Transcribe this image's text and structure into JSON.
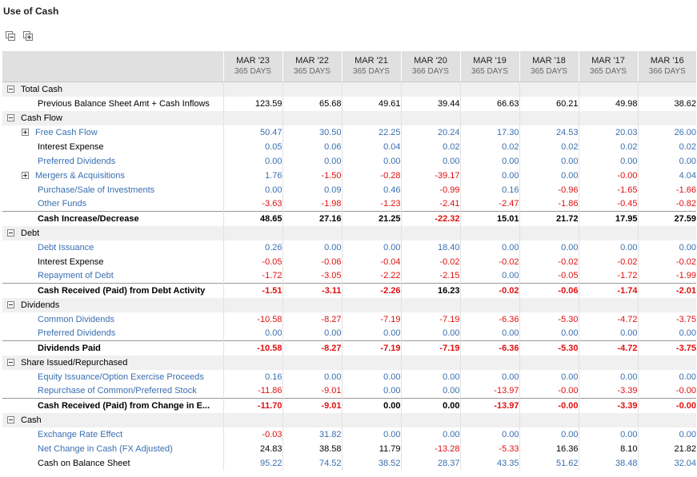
{
  "page": {
    "title": "Use of Cash"
  },
  "toolbar": {
    "icons": [
      "collapse-all-icon",
      "expand-all-icon"
    ]
  },
  "columns": [
    {
      "period": "MAR '23",
      "days": "365 DAYS"
    },
    {
      "period": "MAR '22",
      "days": "365 DAYS"
    },
    {
      "period": "MAR '21",
      "days": "365 DAYS"
    },
    {
      "period": "MAR '20",
      "days": "366 DAYS"
    },
    {
      "period": "MAR '19",
      "days": "365 DAYS"
    },
    {
      "period": "MAR '18",
      "days": "365 DAYS"
    },
    {
      "period": "MAR '17",
      "days": "365 DAYS"
    },
    {
      "period": "MAR '16",
      "days": "366 DAYS"
    }
  ],
  "rows": [
    {
      "type": "section",
      "label": "Total Cash"
    },
    {
      "type": "row",
      "label": "Previous Balance Sheet Amt + Cash Inflows",
      "link": false,
      "color": "black",
      "values": [
        "123.59",
        "65.68",
        "49.61",
        "39.44",
        "66.63",
        "60.21",
        "49.98",
        "38.62"
      ]
    },
    {
      "type": "section",
      "label": "Cash Flow"
    },
    {
      "type": "row",
      "label": "Free Cash Flow",
      "link": true,
      "expand": true,
      "color": "blue",
      "values": [
        "50.47",
        "30.50",
        "22.25",
        "20.24",
        "17.30",
        "24.53",
        "20.03",
        "26.00"
      ]
    },
    {
      "type": "row",
      "label": "Interest Expense",
      "link": false,
      "color": "blue",
      "values": [
        "0.05",
        "0.06",
        "0.04",
        "0.02",
        "0.02",
        "0.02",
        "0.02",
        "0.02"
      ]
    },
    {
      "type": "row",
      "label": "Preferred Dividends",
      "link": true,
      "color": "blue",
      "values": [
        "0.00",
        "0.00",
        "0.00",
        "0.00",
        "0.00",
        "0.00",
        "0.00",
        "0.00"
      ]
    },
    {
      "type": "row",
      "label": "Mergers & Acquisitions",
      "link": true,
      "expand": true,
      "color": "blue",
      "values": [
        "1.76",
        "-1.50",
        "-0.28",
        "-39.17",
        "0.00",
        "0.00",
        "-0.00",
        "4.04"
      ]
    },
    {
      "type": "row",
      "label": "Purchase/Sale of Investments",
      "link": true,
      "color": "blue",
      "values": [
        "0.00",
        "0.09",
        "0.46",
        "-0.99",
        "0.16",
        "-0.96",
        "-1.65",
        "-1.66"
      ]
    },
    {
      "type": "row",
      "label": "Other Funds",
      "link": true,
      "color": "blue",
      "values": [
        "-3.63",
        "-1.98",
        "-1.23",
        "-2.41",
        "-2.47",
        "-1.86",
        "-0.45",
        "-0.82"
      ]
    },
    {
      "type": "total",
      "label": "Cash Increase/Decrease",
      "values": [
        "48.65",
        "27.16",
        "21.25",
        "-22.32",
        "15.01",
        "21.72",
        "17.95",
        "27.59"
      ]
    },
    {
      "type": "section",
      "label": "Debt"
    },
    {
      "type": "row",
      "label": "Debt Issuance",
      "link": true,
      "color": "blue",
      "values": [
        "0.26",
        "0.00",
        "0.00",
        "18.40",
        "0.00",
        "0.00",
        "0.00",
        "0.00"
      ]
    },
    {
      "type": "row",
      "label": "Interest Expense",
      "link": false,
      "color": "blue",
      "values": [
        "-0.05",
        "-0.06",
        "-0.04",
        "-0.02",
        "-0.02",
        "-0.02",
        "-0.02",
        "-0.02"
      ]
    },
    {
      "type": "row",
      "label": "Repayment of Debt",
      "link": true,
      "color": "blue",
      "values": [
        "-1.72",
        "-3.05",
        "-2.22",
        "-2.15",
        "0.00",
        "-0.05",
        "-1.72",
        "-1.99"
      ]
    },
    {
      "type": "total",
      "label": "Cash Received (Paid) from Debt Activity",
      "values": [
        "-1.51",
        "-3.11",
        "-2.26",
        "16.23",
        "-0.02",
        "-0.06",
        "-1.74",
        "-2.01"
      ]
    },
    {
      "type": "section",
      "label": "Dividends"
    },
    {
      "type": "row",
      "label": "Common Dividends",
      "link": true,
      "color": "blue",
      "values": [
        "-10.58",
        "-8.27",
        "-7.19",
        "-7.19",
        "-6.36",
        "-5.30",
        "-4.72",
        "-3.75"
      ]
    },
    {
      "type": "row",
      "label": "Preferred Dividends",
      "link": true,
      "color": "blue",
      "values": [
        "0.00",
        "0.00",
        "0.00",
        "0.00",
        "0.00",
        "0.00",
        "0.00",
        "0.00"
      ]
    },
    {
      "type": "total",
      "label": "Dividends Paid",
      "values": [
        "-10.58",
        "-8.27",
        "-7.19",
        "-7.19",
        "-6.36",
        "-5.30",
        "-4.72",
        "-3.75"
      ]
    },
    {
      "type": "section",
      "label": "Share Issued/Repurchased"
    },
    {
      "type": "row",
      "label": "Equity Issuance/Option Exercise Proceeds",
      "link": true,
      "color": "blue",
      "values": [
        "0.16",
        "0.00",
        "0.00",
        "0.00",
        "0.00",
        "0.00",
        "0.00",
        "0.00"
      ]
    },
    {
      "type": "row",
      "label": "Repurchase of Common/Preferred Stock",
      "link": true,
      "color": "blue",
      "values": [
        "-11.86",
        "-9.01",
        "0.00",
        "0.00",
        "-13.97",
        "-0.00",
        "-3.39",
        "-0.00"
      ]
    },
    {
      "type": "total",
      "label": "Cash Received (Paid) from Change in E...",
      "values": [
        "-11.70",
        "-9.01",
        "0.00",
        "0.00",
        "-13.97",
        "-0.00",
        "-3.39",
        "-0.00"
      ]
    },
    {
      "type": "section",
      "label": "Cash"
    },
    {
      "type": "row",
      "label": "Exchange Rate Effect",
      "link": true,
      "color": "blue",
      "values": [
        "-0.03",
        "31.82",
        "0.00",
        "0.00",
        "0.00",
        "0.00",
        "0.00",
        "0.00"
      ]
    },
    {
      "type": "row",
      "label": "Net Change in Cash (FX Adjusted)",
      "link": true,
      "color": "black",
      "values": [
        "24.83",
        "38.58",
        "11.79",
        "-13.28",
        "-5.33",
        "16.36",
        "8.10",
        "21.82"
      ]
    },
    {
      "type": "row",
      "label": "Cash on Balance Sheet",
      "link": false,
      "color": "blue",
      "values": [
        "95.22",
        "74.52",
        "38.52",
        "28.37",
        "43.35",
        "51.62",
        "38.48",
        "32.04"
      ]
    }
  ],
  "colors": {
    "link": "#3a6fb0",
    "negative": "#e01010",
    "header_bg": "#e0e0e0",
    "section_bg": "#f0f0f0"
  }
}
